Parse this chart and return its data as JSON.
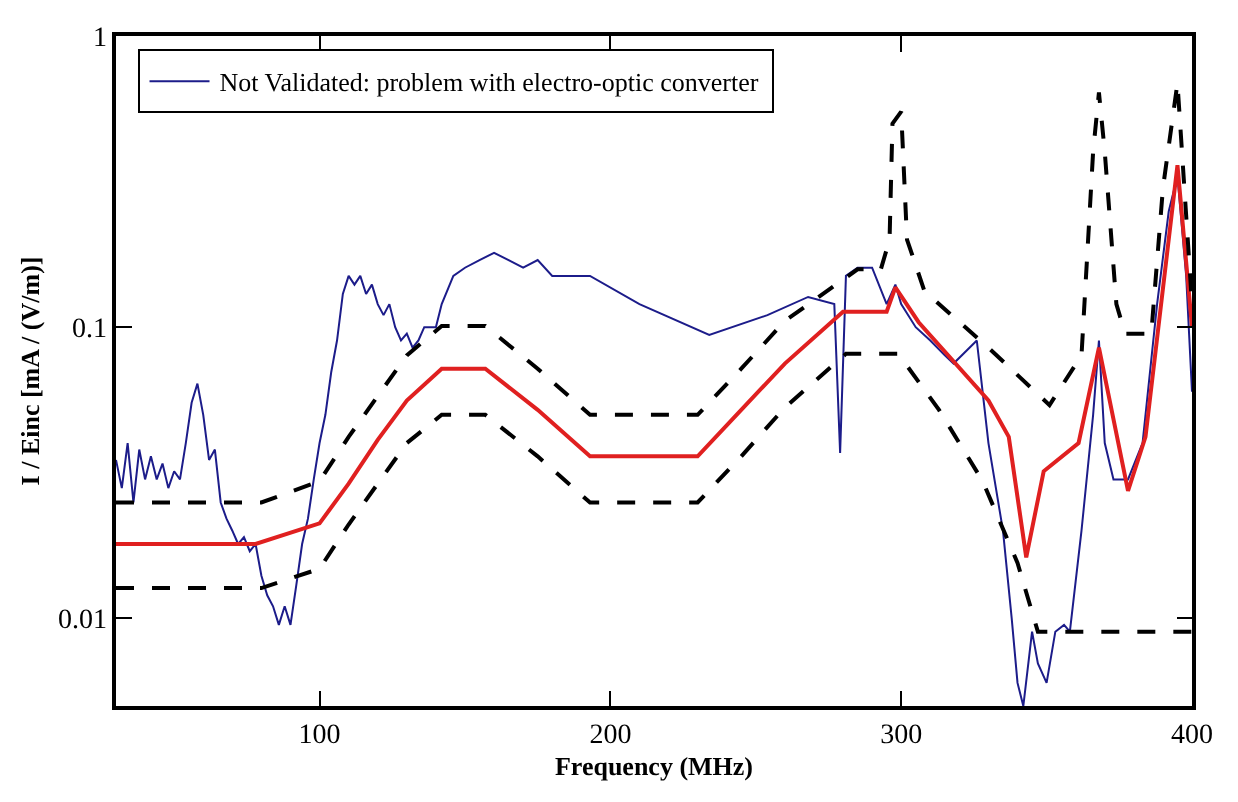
{
  "chart_data": {
    "type": "line",
    "xlabel": "Frequency (MHz)",
    "ylabel": "I / Einc [mA / (V/m)]",
    "log": "y",
    "xlim": [
      30,
      400
    ],
    "ylim": [
      0.005,
      1
    ],
    "xticks": [
      100,
      200,
      300,
      400
    ],
    "yticks": [
      0.01,
      0.1,
      1
    ],
    "legend": "top left",
    "marker": "none",
    "series": [
      {
        "name": "Not Validated: problem with electro-optic converter",
        "color": "#1c1c8a",
        "line_style": "solid",
        "x": [
          30,
          32,
          34,
          36,
          38,
          40,
          42,
          44,
          46,
          48,
          50,
          52,
          54,
          56,
          58,
          60,
          62,
          64,
          66,
          68,
          70,
          72,
          74,
          76,
          78,
          80,
          82,
          84,
          86,
          88,
          90,
          92,
          94,
          96,
          98,
          100,
          102,
          104,
          106,
          108,
          110,
          112,
          114,
          116,
          118,
          120,
          122,
          124,
          126,
          128,
          130,
          132,
          134,
          136,
          138,
          140,
          142,
          146,
          150,
          155,
          160,
          165,
          170,
          175,
          180,
          193,
          210,
          234,
          254,
          268,
          277,
          279,
          281,
          285,
          290,
          295,
          298,
          300,
          305,
          310,
          315,
          318,
          326,
          330,
          335,
          338,
          340,
          342,
          345,
          347,
          350,
          353,
          356,
          358,
          362,
          366,
          368,
          370,
          373,
          378,
          383,
          388,
          392,
          395,
          398,
          400
        ],
        "values": [
          0.035,
          0.028,
          0.04,
          0.025,
          0.038,
          0.03,
          0.036,
          0.03,
          0.034,
          0.028,
          0.032,
          0.03,
          0.04,
          0.055,
          0.064,
          0.05,
          0.035,
          0.038,
          0.025,
          0.022,
          0.02,
          0.018,
          0.019,
          0.017,
          0.018,
          0.014,
          0.012,
          0.011,
          0.0095,
          0.011,
          0.0095,
          0.013,
          0.018,
          0.022,
          0.03,
          0.04,
          0.05,
          0.07,
          0.09,
          0.13,
          0.15,
          0.14,
          0.15,
          0.13,
          0.14,
          0.12,
          0.11,
          0.12,
          0.1,
          0.09,
          0.095,
          0.085,
          0.09,
          0.1,
          0.1,
          0.1,
          0.12,
          0.15,
          0.16,
          0.17,
          0.18,
          0.17,
          0.16,
          0.17,
          0.15,
          0.15,
          0.12,
          0.094,
          0.11,
          0.127,
          0.12,
          0.037,
          0.15,
          0.16,
          0.16,
          0.12,
          0.14,
          0.12,
          0.1,
          0.09,
          0.08,
          0.075,
          0.09,
          0.04,
          0.02,
          0.01,
          0.006,
          0.005,
          0.009,
          0.007,
          0.006,
          0.009,
          0.0095,
          0.009,
          0.02,
          0.05,
          0.09,
          0.04,
          0.03,
          0.03,
          0.04,
          0.12,
          0.25,
          0.33,
          0.15,
          0.06
        ]
      },
      {
        "color": "#e02020",
        "line_style": "solid",
        "x": [
          30,
          78,
          100,
          110,
          120,
          130,
          142,
          157,
          175,
          193,
          230,
          245,
          260,
          280,
          295,
          298,
          306,
          330,
          337,
          343,
          349,
          361,
          368,
          378,
          384,
          395,
          400
        ],
        "values": [
          0.018,
          0.018,
          0.0212,
          0.029,
          0.041,
          0.056,
          0.072,
          0.072,
          0.052,
          0.036,
          0.036,
          0.052,
          0.075,
          0.113,
          0.113,
          0.137,
          0.104,
          0.056,
          0.042,
          0.0162,
          0.032,
          0.04,
          0.085,
          0.0274,
          0.042,
          0.36,
          0.1
        ]
      },
      {
        "color": "#000000",
        "line_style": "dashed",
        "x": [
          30,
          80,
          100,
          110,
          120,
          130,
          142,
          157,
          175,
          193,
          230,
          245,
          260,
          285,
          293,
          296,
          297,
          300,
          302,
          308,
          330,
          351,
          362,
          366,
          368,
          370,
          374,
          377,
          386,
          390,
          395,
          400
        ],
        "values": [
          0.025,
          0.025,
          0.0296,
          0.042,
          0.058,
          0.08,
          0.101,
          0.101,
          0.072,
          0.05,
          0.05,
          0.072,
          0.105,
          0.158,
          0.158,
          0.2,
          0.5,
          0.55,
          0.2,
          0.133,
          0.085,
          0.054,
          0.08,
          0.4,
          0.64,
          0.4,
          0.12,
          0.095,
          0.095,
          0.3,
          0.69,
          0.12
        ]
      },
      {
        "color": "#000000",
        "line_style": "dashed",
        "x": [
          30,
          80,
          100,
          110,
          120,
          130,
          142,
          157,
          175,
          193,
          230,
          245,
          260,
          281,
          299,
          313,
          328,
          340,
          347,
          400
        ],
        "values": [
          0.0127,
          0.0127,
          0.0148,
          0.021,
          0.029,
          0.04,
          0.05,
          0.05,
          0.036,
          0.025,
          0.025,
          0.036,
          0.053,
          0.081,
          0.081,
          0.052,
          0.0296,
          0.0155,
          0.009,
          0.009
        ]
      }
    ]
  }
}
